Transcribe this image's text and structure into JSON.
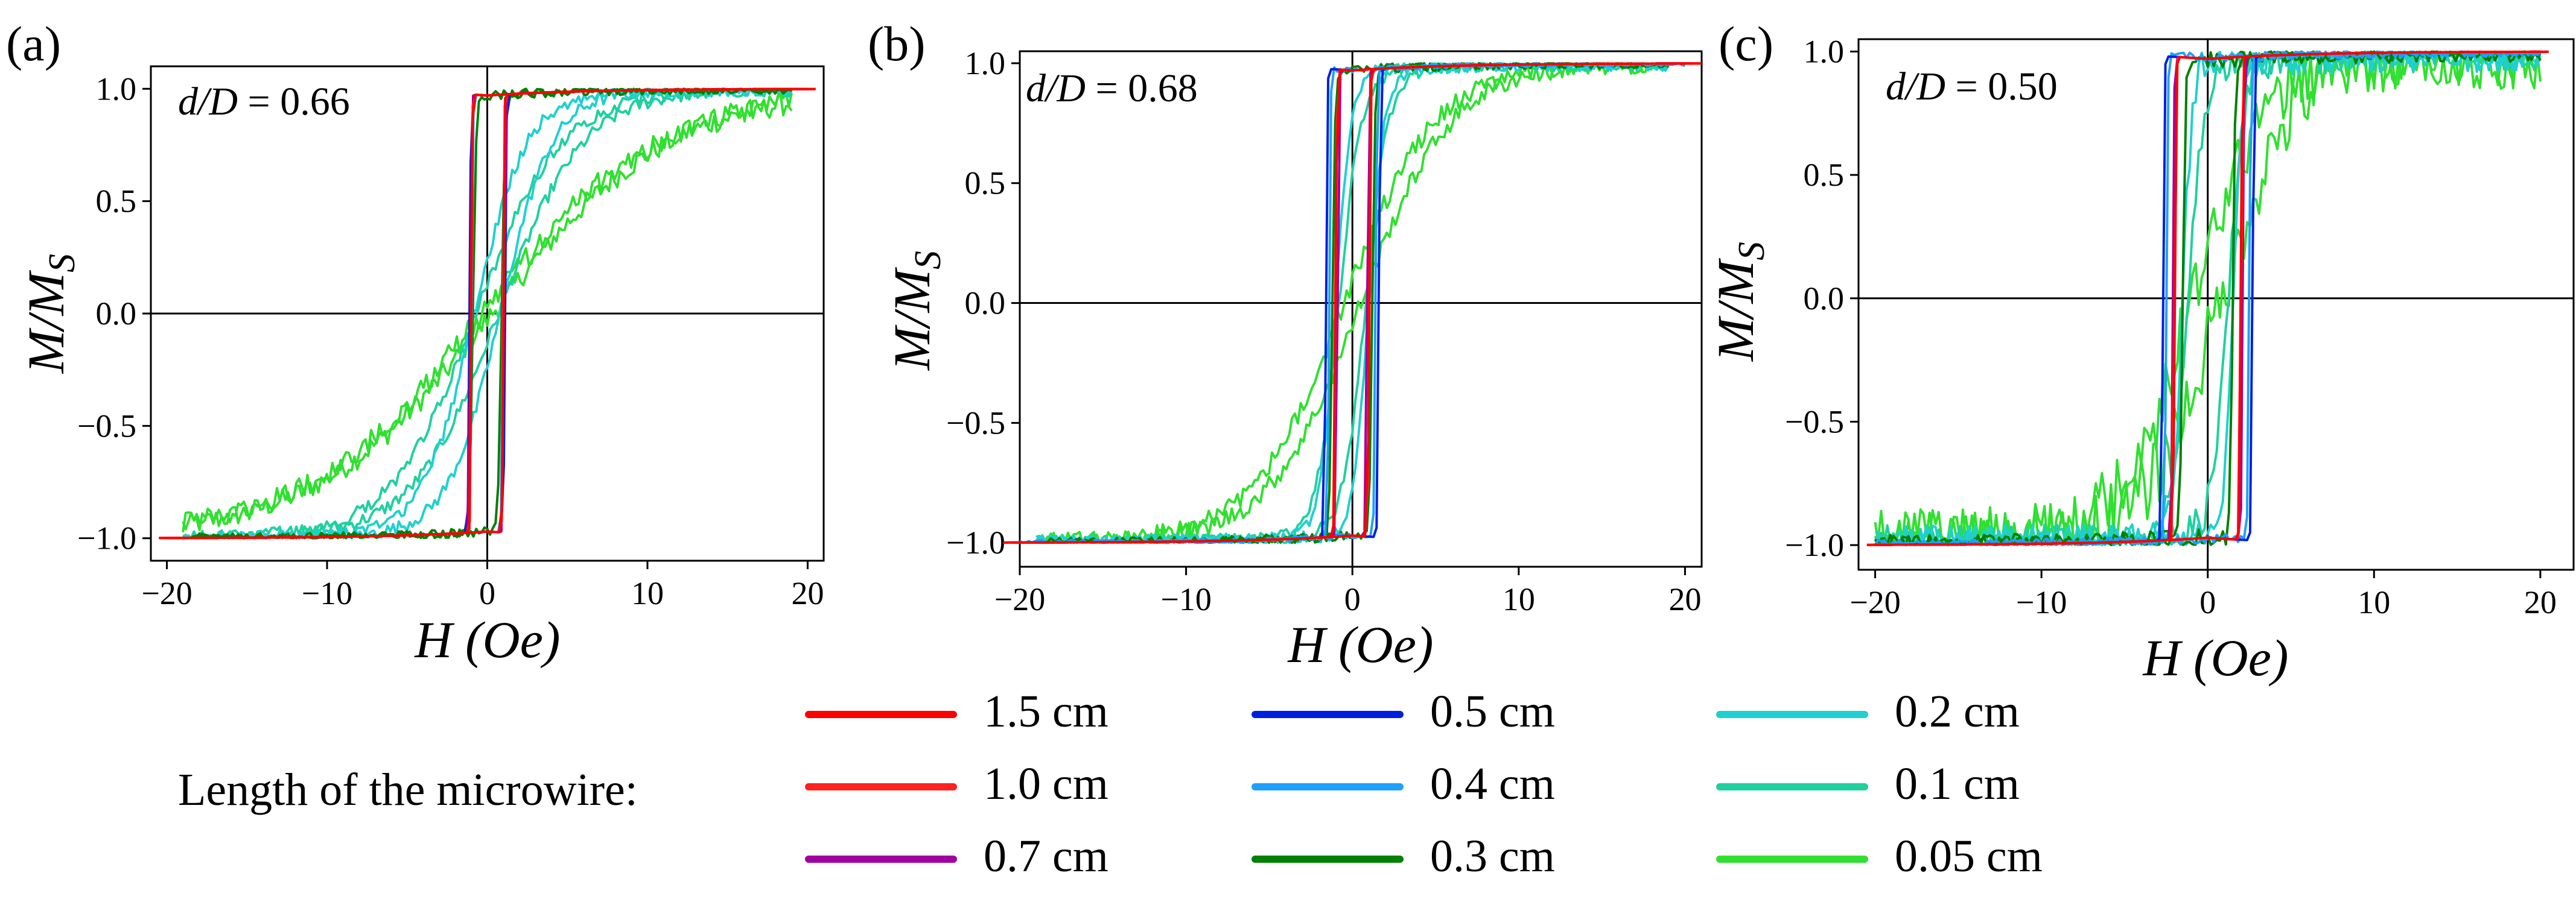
{
  "chart_data": [
    {
      "type": "line",
      "panel_label": "(a)",
      "annotation_var": "d/D",
      "annotation_eq": " = 0.66",
      "xlabel_var": "H",
      "xlabel_unit": " (Oe)",
      "ylabel_var": "M/M",
      "ylabel_sub": "S",
      "xlim": [
        -21,
        21
      ],
      "ylim": [
        -1.1,
        1.1
      ],
      "xticks": [
        -20,
        -10,
        0,
        10,
        20
      ],
      "yticks": [
        -1.0,
        -0.5,
        0.0,
        0.5,
        1.0
      ],
      "xtick_labels": [
        "−20",
        "−10",
        "0",
        "10",
        "20"
      ],
      "ytick_labels": [
        "−1.0",
        "−0.5",
        "0.0",
        "0.5",
        "1.0"
      ],
      "grid": false,
      "series": [
        {
          "name": "1.5 cm",
          "Hc": 1.0,
          "slope_width": 0.25,
          "Hmax": 20.5,
          "sharpness": 8,
          "noise": 0.0
        },
        {
          "name": "1.0 cm",
          "Hc": 1.0,
          "slope_width": 0.25,
          "Hmax": 20.0,
          "sharpness": 8,
          "noise": 0.0
        },
        {
          "name": "0.7 cm",
          "Hc": 1.05,
          "slope_width": 0.25,
          "Hmax": 19.5,
          "sharpness": 7,
          "noise": 0.0
        },
        {
          "name": "0.5 cm",
          "Hc": 1.1,
          "slope_width": 0.3,
          "Hmax": 19.0,
          "sharpness": 6,
          "noise": 0.0
        },
        {
          "name": "0.4 cm",
          "Hc": 1.0,
          "slope_width": 0.3,
          "Hmax": 19.0,
          "sharpness": 5,
          "noise": 0.0
        },
        {
          "name": "0.3 cm",
          "Hc": 0.9,
          "slope_width": 0.5,
          "Hmax": 19.0,
          "sharpness": 3,
          "noise": 0.02
        },
        {
          "name": "0.2 cm",
          "Hc": 0.8,
          "slope_width": 4.0,
          "Hmax": 19.0,
          "sharpness": 0.5,
          "noise": 0.03
        },
        {
          "name": "0.1 cm",
          "Hc": 0.7,
          "slope_width": 6.0,
          "Hmax": 19.0,
          "sharpness": 0.3,
          "noise": 0.03
        },
        {
          "name": "0.05 cm",
          "Hc": 0.3,
          "slope_width": 20.0,
          "Hmax": 19.0,
          "sharpness": 0.0,
          "noise": 0.05
        }
      ]
    },
    {
      "type": "line",
      "panel_label": "(b)",
      "annotation_var": "d/D",
      "annotation_eq": " = 0.68",
      "xlabel_var": "H",
      "xlabel_unit": " (Oe)",
      "ylabel_var": "M/M",
      "ylabel_sub": "S",
      "xlim": [
        -20,
        21
      ],
      "ylim": [
        -1.1,
        1.05
      ],
      "xticks": [
        -20,
        -10,
        0,
        10,
        20
      ],
      "yticks": [
        -1.0,
        -0.5,
        0.0,
        0.5,
        1.0
      ],
      "xtick_labels": [
        "−20",
        "−10",
        "0",
        "10",
        "20"
      ],
      "ytick_labels": [
        "−1.0",
        "−0.5",
        "0.0",
        "0.5",
        "1.0"
      ],
      "grid": false,
      "series": [
        {
          "name": "1.5 cm",
          "Hc": 1.0,
          "slope_width": 0.3,
          "Hmax": 21.0,
          "sharpness": 7,
          "noise": 0.0
        },
        {
          "name": "1.0 cm",
          "Hc": 1.0,
          "slope_width": 0.3,
          "Hmax": 20.5,
          "sharpness": 7,
          "noise": 0.0
        },
        {
          "name": "0.7 cm",
          "Hc": 0.9,
          "slope_width": 0.3,
          "Hmax": 20.0,
          "sharpness": 6,
          "noise": 0.0
        },
        {
          "name": "0.5 cm",
          "Hc": 1.6,
          "slope_width": 0.3,
          "Hmax": 20.0,
          "sharpness": 6,
          "noise": 0.0
        },
        {
          "name": "0.4 cm",
          "Hc": 1.4,
          "slope_width": 0.3,
          "Hmax": 20.0,
          "sharpness": 5,
          "noise": 0.01
        },
        {
          "name": "0.3 cm",
          "Hc": 1.2,
          "slope_width": 0.4,
          "Hmax": 19.0,
          "sharpness": 3,
          "noise": 0.02
        },
        {
          "name": "0.2 cm",
          "Hc": 1.0,
          "slope_width": 1.5,
          "Hmax": 19.0,
          "sharpness": 1.2,
          "noise": 0.03
        },
        {
          "name": "0.1 cm",
          "Hc": 0.8,
          "slope_width": 2.0,
          "Hmax": 19.0,
          "sharpness": 1.0,
          "noise": 0.03
        },
        {
          "name": "0.05 cm",
          "Hc": 0.5,
          "slope_width": 10.0,
          "Hmax": 19.0,
          "sharpness": 0.0,
          "noise": 0.04
        }
      ]
    },
    {
      "type": "line",
      "panel_label": "(c)",
      "annotation_var": "d/D",
      "annotation_eq": " = 0.50",
      "xlabel_var": "H",
      "xlabel_unit": " (Oe)",
      "ylabel_var": "M/M",
      "ylabel_sub": "S",
      "xlim": [
        -21,
        22
      ],
      "ylim": [
        -1.1,
        1.05
      ],
      "xticks": [
        -20,
        -10,
        0,
        10,
        20
      ],
      "yticks": [
        -1.0,
        -0.5,
        0.0,
        0.5,
        1.0
      ],
      "xtick_labels": [
        "−20",
        "−10",
        "0",
        "10",
        "20"
      ],
      "ytick_labels": [
        "−1.0",
        "−0.5",
        "0.0",
        "0.5",
        "1.0"
      ],
      "grid": false,
      "series": [
        {
          "name": "1.5 cm",
          "Hc": 2.0,
          "slope_width": 0.3,
          "Hmax": 20.5,
          "sharpness": 7,
          "noise": 0.0
        },
        {
          "name": "1.0 cm",
          "Hc": 2.0,
          "slope_width": 0.3,
          "Hmax": 20.0,
          "sharpness": 7,
          "noise": 0.0
        },
        {
          "name": "0.7 cm",
          "Hc": 2.1,
          "slope_width": 0.3,
          "Hmax": 20.0,
          "sharpness": 6,
          "noise": 0.0
        },
        {
          "name": "0.5 cm",
          "Hc": 2.7,
          "slope_width": 0.3,
          "Hmax": 20.0,
          "sharpness": 6,
          "noise": 0.0
        },
        {
          "name": "0.4 cm",
          "Hc": 2.5,
          "slope_width": 0.3,
          "Hmax": 20.0,
          "sharpness": 5,
          "noise": 0.02
        },
        {
          "name": "0.3 cm",
          "Hc": 1.5,
          "slope_width": 0.4,
          "Hmax": 20.0,
          "sharpness": 3,
          "noise": 0.04
        },
        {
          "name": "0.2 cm",
          "Hc": 1.5,
          "slope_width": 1.0,
          "Hmax": 20.0,
          "sharpness": 1.5,
          "noise": 0.08
        },
        {
          "name": "0.1 cm",
          "Hc": 1.2,
          "slope_width": 1.5,
          "Hmax": 20.0,
          "sharpness": 1.0,
          "noise": 0.08
        },
        {
          "name": "0.05 cm",
          "Hc": 0.8,
          "slope_width": 8.0,
          "Hmax": 20.0,
          "sharpness": 0.0,
          "noise": 0.15
        }
      ]
    }
  ],
  "legend": {
    "title": "Length of the microwire:",
    "items": [
      {
        "label": "1.5 cm",
        "color": "#ff0000"
      },
      {
        "label": "1.0 cm",
        "color": "#ff2020"
      },
      {
        "label": "0.7 cm",
        "color": "#a000a0"
      },
      {
        "label": "0.5 cm",
        "color": "#0020e0"
      },
      {
        "label": "0.4 cm",
        "color": "#1ea0ff"
      },
      {
        "label": "0.3 cm",
        "color": "#008000"
      },
      {
        "label": "0.2 cm",
        "color": "#20d0d0"
      },
      {
        "label": "0.1 cm",
        "color": "#20d0a0"
      },
      {
        "label": "0.05 cm",
        "color": "#30e030"
      }
    ]
  }
}
